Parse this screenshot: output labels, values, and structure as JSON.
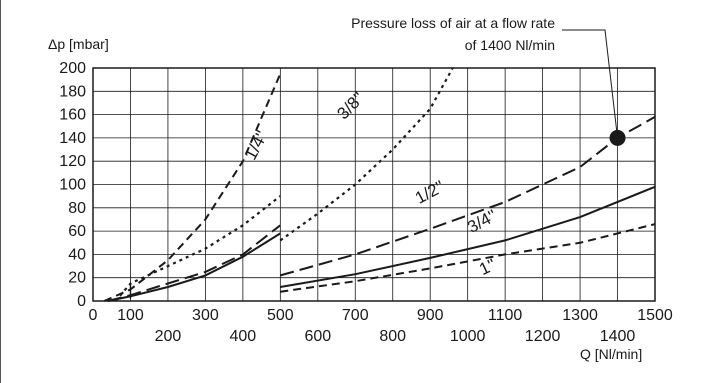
{
  "chart_data": {
    "type": "line",
    "title": "",
    "xlabel": "Q [Nl/min]",
    "ylabel": "Δp [mbar]",
    "xlim": [
      0,
      1500
    ],
    "ylim": [
      0,
      200
    ],
    "grid": true,
    "x_ticks_top_row": [
      "0",
      "100",
      "300",
      "500",
      "700",
      "900",
      "1100",
      "1300",
      "1500"
    ],
    "x_ticks_top_values": [
      0,
      100,
      300,
      500,
      700,
      900,
      1100,
      1300,
      1500
    ],
    "x_ticks_bottom_row": [
      "200",
      "400",
      "600",
      "800",
      "1000",
      "1200",
      "1400"
    ],
    "x_ticks_bottom_values": [
      200,
      400,
      600,
      800,
      1000,
      1200,
      1400
    ],
    "y_ticks": [
      0,
      20,
      40,
      60,
      80,
      100,
      120,
      140,
      160,
      180,
      200
    ],
    "series": [
      {
        "name": "1/4''",
        "style": "dash",
        "segments": [
          [
            [
              30,
              0
            ],
            [
              100,
              10
            ],
            [
              200,
              35
            ],
            [
              300,
              70
            ],
            [
              400,
              120
            ],
            [
              500,
              195
            ]
          ]
        ],
        "label_pos": [
          430,
          120
        ]
      },
      {
        "name": "3/8''",
        "style": "dot",
        "segments": [
          [
            [
              60,
              0
            ],
            [
              100,
              15
            ],
            [
              200,
              30
            ],
            [
              300,
              45
            ],
            [
              400,
              65
            ],
            [
              500,
              90
            ]
          ],
          [
            [
              500,
              52
            ],
            [
              600,
              75
            ],
            [
              700,
              100
            ],
            [
              800,
              130
            ],
            [
              900,
              165
            ],
            [
              960,
              200
            ]
          ]
        ],
        "label_pos": [
          670,
          155
        ]
      },
      {
        "name": "1/2''",
        "style": "longdash",
        "segments": [
          [
            [
              40,
              0
            ],
            [
              100,
              5
            ],
            [
              200,
              15
            ],
            [
              300,
              25
            ],
            [
              400,
              40
            ],
            [
              500,
              65
            ]
          ],
          [
            [
              500,
              22
            ],
            [
              700,
              40
            ],
            [
              900,
              62
            ],
            [
              1100,
              85
            ],
            [
              1300,
              115
            ],
            [
              1400,
              140
            ],
            [
              1500,
              158
            ]
          ]
        ],
        "label_pos": [
          870,
          83
        ]
      },
      {
        "name": "3/4''",
        "style": "solid",
        "segments": [
          [
            [
              40,
              0
            ],
            [
              100,
              4
            ],
            [
              200,
              12
            ],
            [
              300,
              22
            ],
            [
              400,
              38
            ],
            [
              500,
              58
            ]
          ],
          [
            [
              500,
              12
            ],
            [
              700,
              23
            ],
            [
              900,
              37
            ],
            [
              1100,
              52
            ],
            [
              1300,
              72
            ],
            [
              1500,
              98
            ]
          ]
        ],
        "label_pos": [
          1010,
          58
        ]
      },
      {
        "name": "1''",
        "style": "dash",
        "segments": [
          [
            [
              500,
              8
            ],
            [
              700,
              17
            ],
            [
              900,
              28
            ],
            [
              1100,
              40
            ],
            [
              1300,
              50
            ],
            [
              1500,
              66
            ]
          ]
        ],
        "label_pos": [
          1040,
          22
        ]
      }
    ],
    "marker": {
      "x": 1400,
      "y": 140
    },
    "annotation": {
      "line1": "Pressure loss of air at a flow rate",
      "line2": "of 1400 Nl/min"
    }
  }
}
